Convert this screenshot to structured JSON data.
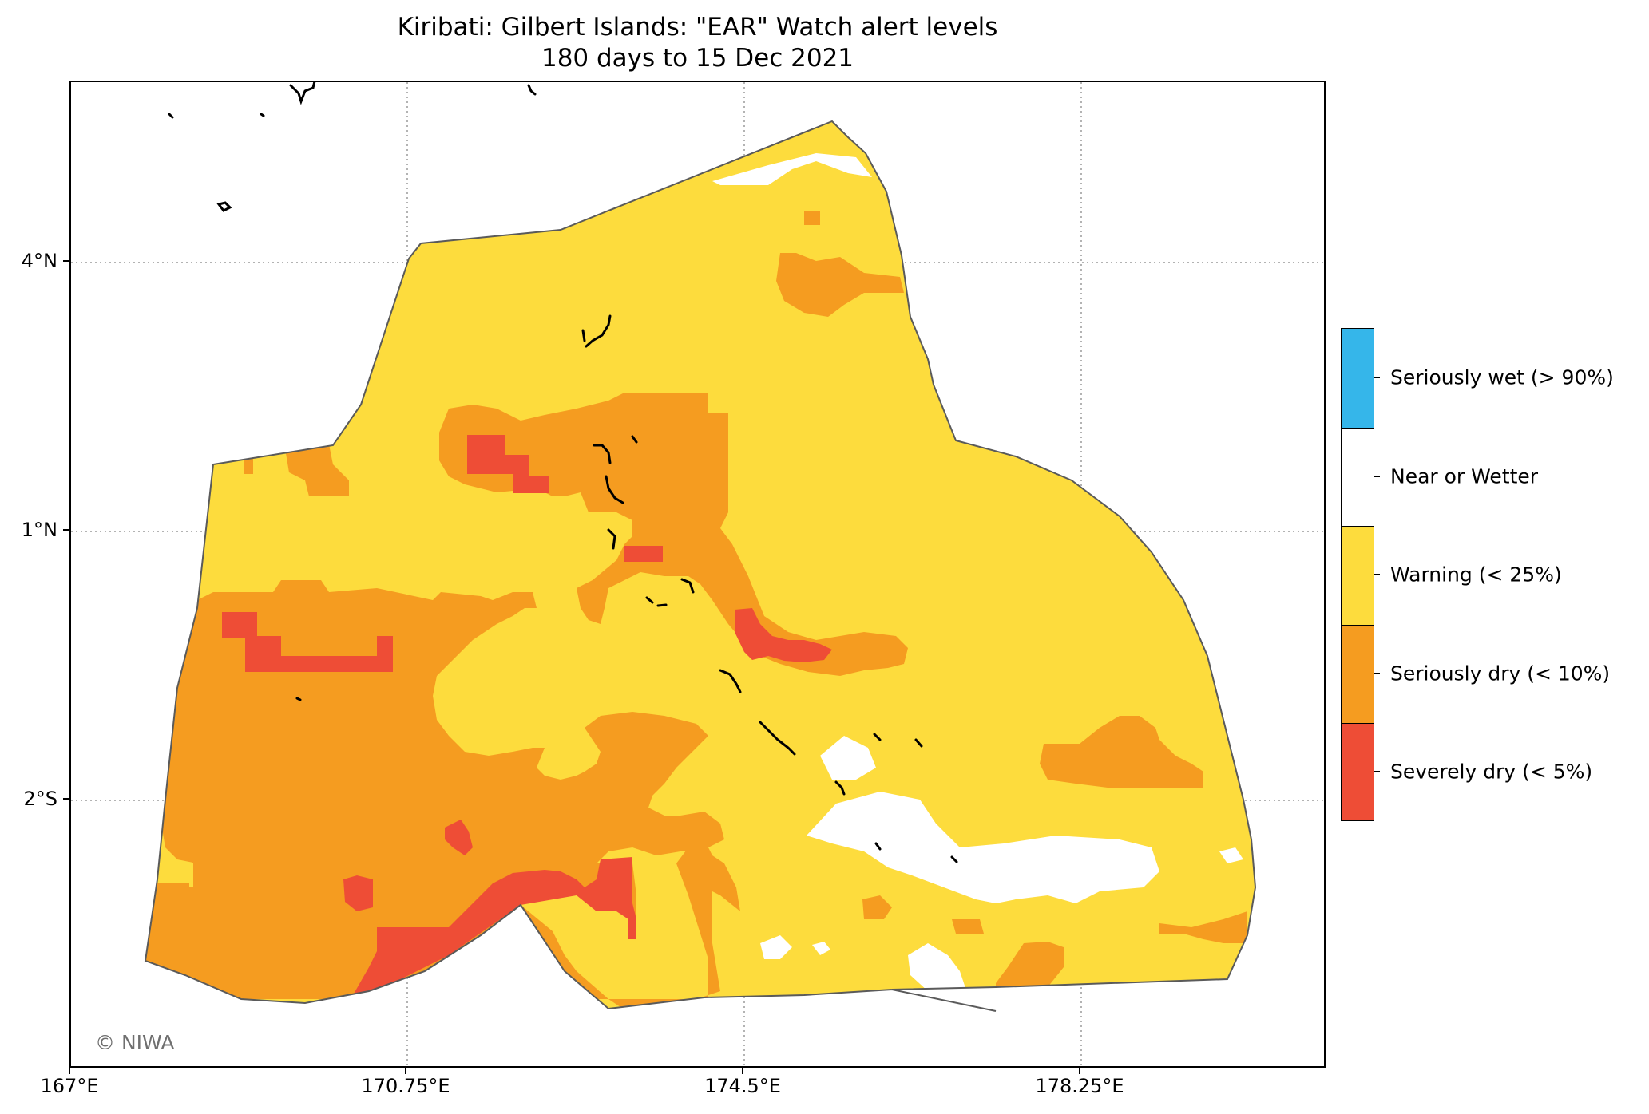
{
  "title": {
    "line1": "Kiribati: Gilbert Islands: \"EAR\" Watch alert levels",
    "line2": "180 days to 15 Dec 2021"
  },
  "axes": {
    "x_ticks": [
      "167°E",
      "170.75°E",
      "174.5°E",
      "178.25°E"
    ],
    "y_ticks": [
      "4°N",
      "1°N",
      "2°S"
    ]
  },
  "credit": "© NIWA",
  "legend": {
    "items": [
      {
        "label": "Seriously wet (> 90%)",
        "color": "#35b6ea"
      },
      {
        "label": "Near or Wetter",
        "color": "#ffffff"
      },
      {
        "label": "Warning (< 25%)",
        "color": "#fddc3d"
      },
      {
        "label": "Seriously dry (< 10%)",
        "color": "#f59c20"
      },
      {
        "label": "Severely dry (< 5%)",
        "color": "#ee4d36"
      }
    ]
  },
  "colors": {
    "warning": "#fddc3d",
    "seriously_dry": "#f59c20",
    "severely_dry": "#ee4d36",
    "near_or_wetter": "#ffffff",
    "boundary": "#5a5a5a",
    "grid": "#9a9a9a",
    "coastline": "#000000"
  }
}
